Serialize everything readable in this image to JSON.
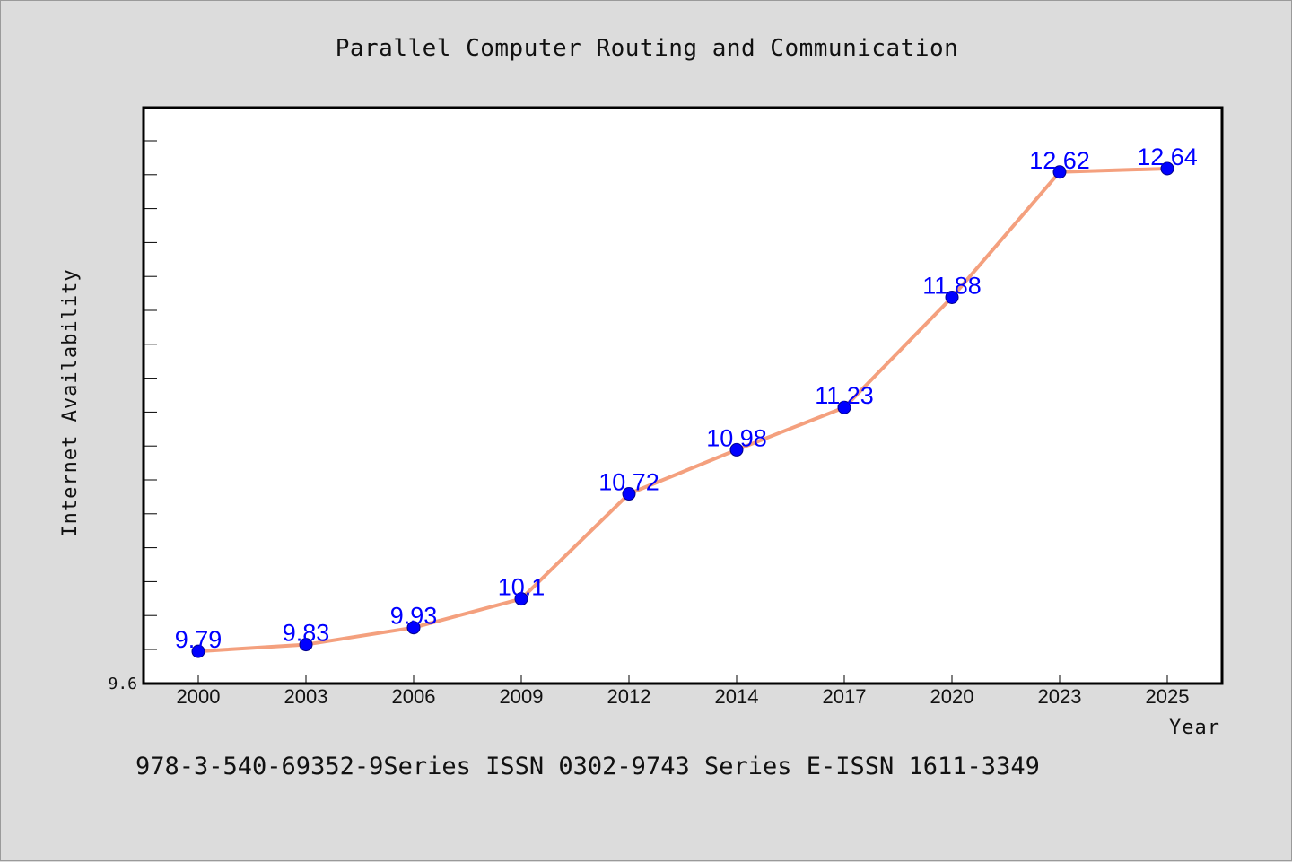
{
  "colors": {
    "background": "#dcdcdc",
    "plot_background": "#ffffff",
    "line": "#f4a07e",
    "marker": "#0000ff",
    "data_label": "#0000ff"
  },
  "footer": "978-3-540-69352-9Series ISSN 0302-9743 Series E-ISSN 1611-3349",
  "chart_data": {
    "type": "line",
    "title": "Parallel Computer Routing and Communication",
    "xlabel": "Year",
    "ylabel": "Internet Availability",
    "categories": [
      "2000",
      "2003",
      "2006",
      "2009",
      "2012",
      "2014",
      "2017",
      "2020",
      "2023",
      "2025"
    ],
    "series": [
      {
        "values": [
          9.79,
          9.83,
          9.93,
          10.1,
          10.72,
          10.98,
          11.23,
          11.88,
          12.62,
          12.64
        ],
        "labels": [
          "9.79",
          "9.83",
          "9.93",
          "10.1",
          "10.72",
          "10.98",
          "11.23",
          "11.88",
          "12.62",
          "12.64"
        ]
      }
    ],
    "y_tick_labels": [
      "9.6"
    ],
    "ylim": [
      9.6,
      13.0
    ],
    "grid": false,
    "legend": "none"
  }
}
